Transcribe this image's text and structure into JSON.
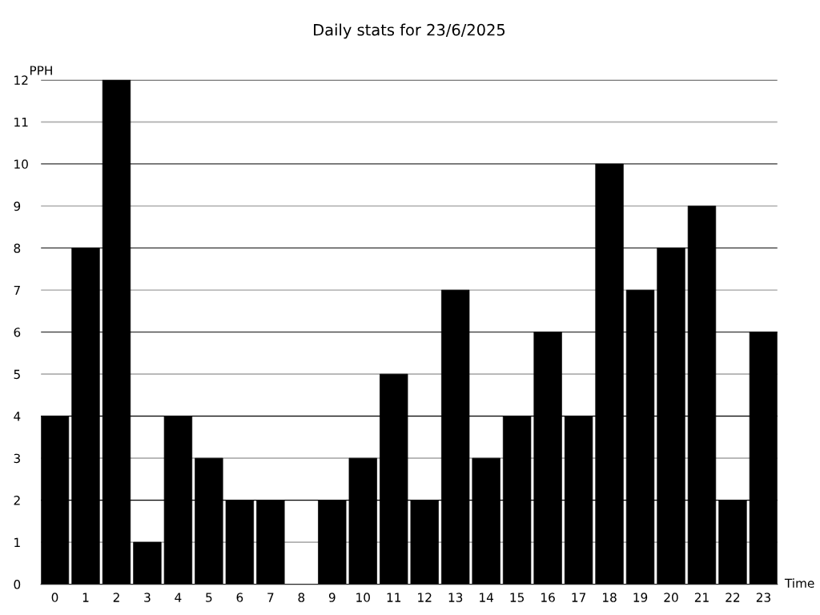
{
  "chart_data": {
    "type": "bar",
    "title": "Daily stats for 23/6/2025",
    "xlabel": "Time",
    "ylabel": "PPH",
    "categories": [
      "0",
      "1",
      "2",
      "3",
      "4",
      "5",
      "6",
      "7",
      "8",
      "9",
      "10",
      "11",
      "12",
      "13",
      "14",
      "15",
      "16",
      "17",
      "18",
      "19",
      "20",
      "21",
      "22",
      "23"
    ],
    "values": [
      4,
      8,
      12,
      1,
      4,
      3,
      2,
      2,
      0,
      2,
      3,
      5,
      2,
      7,
      3,
      4,
      6,
      4,
      10,
      7,
      8,
      9,
      2,
      6
    ],
    "color": "#000000",
    "ylim": [
      0,
      12
    ],
    "yticks": [
      0,
      1,
      2,
      3,
      4,
      5,
      6,
      7,
      8,
      9,
      10,
      11,
      12
    ],
    "grid": "y"
  }
}
